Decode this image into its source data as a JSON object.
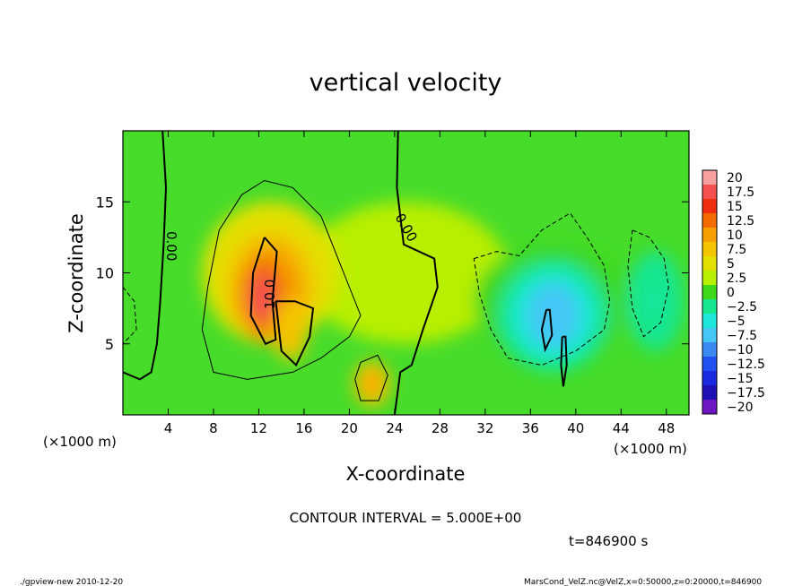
{
  "chart_data": {
    "type": "heatmap",
    "title": "vertical velocity",
    "xlabel": "X-coordinate",
    "ylabel": "Z-coordinate",
    "x_unit_label": "(×1000 m)",
    "x_unit_label_right": "(×1000 m)",
    "xlim": [
      0,
      50
    ],
    "ylim": [
      0,
      20
    ],
    "xticks": [
      "4",
      "8",
      "12",
      "16",
      "20",
      "24",
      "28",
      "32",
      "36",
      "40",
      "44",
      "48"
    ],
    "yticks": [
      "5",
      "10",
      "15"
    ],
    "colorbar": {
      "labels": [
        "20",
        "17.5",
        "15",
        "12.5",
        "10",
        "7.5",
        "5",
        "2.5",
        "0",
        "−2.5",
        "−5",
        "−7.5",
        "−10",
        "−12.5",
        "−15",
        "−17.5",
        "−20"
      ],
      "min": -20,
      "max": 20,
      "colors": [
        "#f7a0a0",
        "#f45050",
        "#ef2e10",
        "#f26a00",
        "#f5a000",
        "#f3c500",
        "#e3e000",
        "#b8ee00",
        "#3ed81b",
        "#16e690",
        "#1ee6da",
        "#45c6f5",
        "#3a8af2",
        "#2150f0",
        "#1a2ae0",
        "#1e10b4",
        "#6e16c2"
      ]
    },
    "contour_interval_text": "CONTOUR INTERVAL = 5.000E+00",
    "contour_labels": [
      "0.00",
      "0.00",
      "10.0"
    ],
    "time_text": "t=846900 s",
    "features": [
      {
        "kind": "updraft",
        "x": 13,
        "z": 8,
        "peak": 17
      },
      {
        "kind": "updraft",
        "x": 22,
        "z": 2,
        "peak": 7
      },
      {
        "kind": "downdraft",
        "x": 38,
        "z": 7,
        "peak": -8
      },
      {
        "kind": "downdraft",
        "x": 47,
        "z": 8,
        "peak": -4
      }
    ]
  },
  "footer": {
    "left": "./gpview-new  2010-12-20",
    "right": "MarsCond_VelZ.nc@VelZ,x=0:50000,z=0:20000,t=846900"
  }
}
